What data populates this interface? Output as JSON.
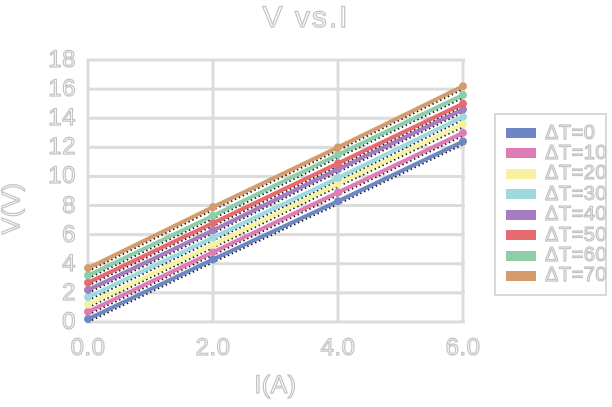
{
  "chart_data": {
    "type": "line",
    "title": "V vs.I",
    "xlabel": "I(A)",
    "ylabel": "V(V)",
    "x": [
      0,
      2,
      4,
      6
    ],
    "xlim": [
      0,
      6
    ],
    "ylim": [
      0,
      18
    ],
    "x_tick_labels": [
      "0.0",
      "2.0",
      "4.0",
      "6.0"
    ],
    "x_tick_values": [
      0,
      2,
      4,
      6
    ],
    "y_tick_labels": [
      "0",
      "2",
      "4",
      "6",
      "8",
      "10",
      "12",
      "14",
      "16",
      "18"
    ],
    "y_tick_values": [
      0,
      2,
      4,
      6,
      8,
      10,
      12,
      14,
      16,
      18
    ],
    "grid": true,
    "legend_position": "right",
    "series": [
      {
        "name": "ΔT=0",
        "color": "#6e86c3",
        "values": [
          0.2,
          4.3,
          8.3,
          12.4
        ]
      },
      {
        "name": "ΔT=10",
        "color": "#e07cb4",
        "values": [
          0.7,
          4.8,
          8.9,
          13.0
        ]
      },
      {
        "name": "ΔT=20",
        "color": "#f7f2a0",
        "values": [
          1.2,
          5.3,
          9.5,
          13.6
        ]
      },
      {
        "name": "ΔT=30",
        "color": "#9ed9e0",
        "values": [
          1.7,
          5.8,
          9.9,
          14.1
        ]
      },
      {
        "name": "ΔT=40",
        "color": "#a47cbf",
        "values": [
          2.2,
          6.3,
          10.5,
          14.6
        ]
      },
      {
        "name": "ΔT=50",
        "color": "#e66b6e",
        "values": [
          2.7,
          6.8,
          10.9,
          15.0
        ]
      },
      {
        "name": "ΔT=60",
        "color": "#8fcda8",
        "values": [
          3.2,
          7.3,
          11.5,
          15.6
        ]
      },
      {
        "name": "ΔT=70",
        "color": "#d49c6c",
        "values": [
          3.7,
          7.9,
          12.0,
          16.2
        ]
      }
    ],
    "trendlines": {
      "present": true,
      "style": "dotted",
      "color": "#1a1a1a"
    }
  },
  "style": {
    "background": "#ffffff",
    "grid_color": "#dcdcdc",
    "text_fill": "#ffffff",
    "text_outline": "#c3c3c3",
    "legend_border": "#d9d9d9"
  }
}
